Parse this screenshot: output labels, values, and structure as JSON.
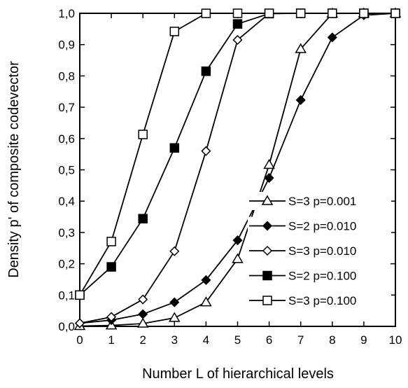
{
  "chart_data": {
    "type": "line",
    "xlabel": "Number L of hierarchical levels",
    "ylabel": "Density p' of composite codevector",
    "xlim": [
      0,
      10
    ],
    "ylim": [
      0,
      1
    ],
    "x_ticks": [
      "0",
      "1",
      "2",
      "3",
      "4",
      "5",
      "6",
      "7",
      "8",
      "9",
      "10"
    ],
    "y_ticks": [
      "0,0",
      "0,1",
      "0,2",
      "0,3",
      "0,4",
      "0,5",
      "0,6",
      "0,7",
      "0,8",
      "0,9",
      "1,0"
    ],
    "grid": false,
    "legend_position": "bottom-right",
    "x": [
      0,
      1,
      2,
      3,
      4,
      5,
      6,
      7,
      8,
      9,
      10
    ],
    "series": [
      {
        "name": "S=3 p=0.001",
        "marker": "triangle-open",
        "values": [
          0.001,
          0.003,
          0.009,
          0.027,
          0.077,
          0.215,
          0.516,
          0.886,
          0.9995,
          1.0,
          1.0
        ]
      },
      {
        "name": "S=2 p=0.010",
        "marker": "diamond-filled",
        "values": [
          0.01,
          0.02,
          0.039,
          0.077,
          0.148,
          0.275,
          0.474,
          0.723,
          0.923,
          0.994,
          1.0
        ]
      },
      {
        "name": "S=3 p=0.010",
        "marker": "diamond-open",
        "values": [
          0.01,
          0.03,
          0.086,
          0.24,
          0.56,
          0.915,
          0.9995,
          1.0,
          1.0,
          1.0,
          1.0
        ]
      },
      {
        "name": "S=2 p=0.100",
        "marker": "square-filled",
        "values": [
          0.1,
          0.19,
          0.344,
          0.57,
          0.815,
          0.966,
          0.999,
          1.0,
          1.0,
          1.0,
          1.0
        ]
      },
      {
        "name": "S=3 p=0.100",
        "marker": "square-open",
        "values": [
          0.1,
          0.271,
          0.613,
          0.942,
          0.9998,
          1.0,
          1.0,
          1.0,
          1.0,
          1.0,
          1.0
        ]
      }
    ]
  }
}
